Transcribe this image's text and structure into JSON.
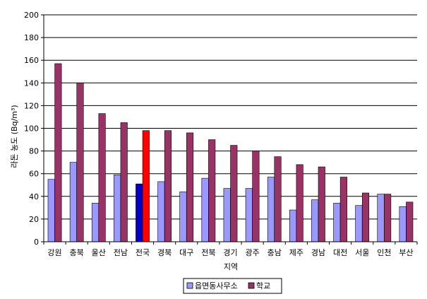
{
  "chart_data": {
    "type": "bar",
    "title": "",
    "xlabel": "지역",
    "ylabel": "라돈 농도 (Bq/m³)",
    "ylim": [
      0,
      200
    ],
    "yticks": [
      0,
      20,
      40,
      60,
      80,
      100,
      120,
      140,
      160,
      180,
      200
    ],
    "grid": true,
    "legend_position": "bottom",
    "categories": [
      "강원",
      "충북",
      "울산",
      "전남",
      "전국",
      "경북",
      "대구",
      "전북",
      "경기",
      "광주",
      "충남",
      "제주",
      "경남",
      "대전",
      "서울",
      "인천",
      "부산"
    ],
    "series": [
      {
        "name": "읍면동사무소",
        "color": "#9999ff",
        "values": [
          55,
          70,
          34,
          59,
          51,
          53,
          44,
          56,
          47,
          47,
          57,
          28,
          37,
          34,
          32,
          42,
          31
        ]
      },
      {
        "name": "학교",
        "color": "#993366",
        "values": [
          157,
          140,
          113,
          105,
          98,
          98,
          96,
          90,
          85,
          80,
          75,
          68,
          66,
          57,
          43,
          42,
          35
        ]
      }
    ],
    "highlight": {
      "category": "전국",
      "colors": [
        "#0000cc",
        "#ff0000"
      ]
    }
  }
}
